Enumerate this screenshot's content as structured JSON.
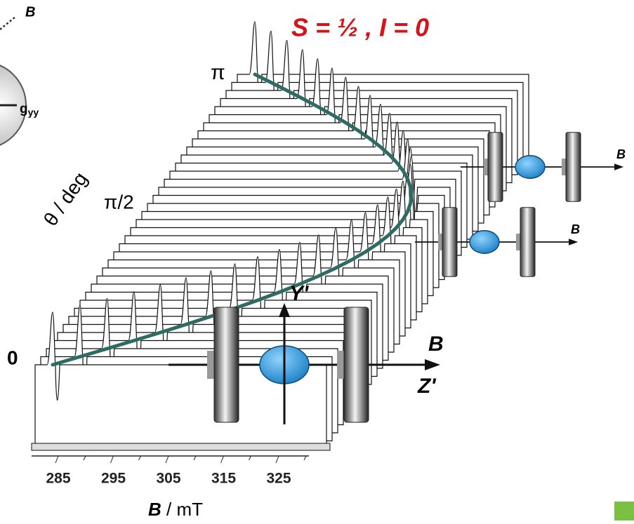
{
  "header": {
    "title": "S = ½ , I = 0"
  },
  "axes": {
    "y_label": "θ / deg",
    "y_ticks": [
      "π",
      "π/2",
      "0"
    ],
    "x_ticks": [
      "285",
      "295",
      "305",
      "315",
      "325"
    ],
    "x_label_symbol": "B",
    "x_label_unit": " / mT"
  },
  "orientation": {
    "front": {
      "y_axis": "Y'",
      "field": "B",
      "z_axis": "Z'"
    },
    "middle": {
      "field": "B"
    },
    "back": {
      "field": "B"
    }
  },
  "inset": {
    "field": "B",
    "g_label": "g",
    "g_sub": "yy"
  }
}
